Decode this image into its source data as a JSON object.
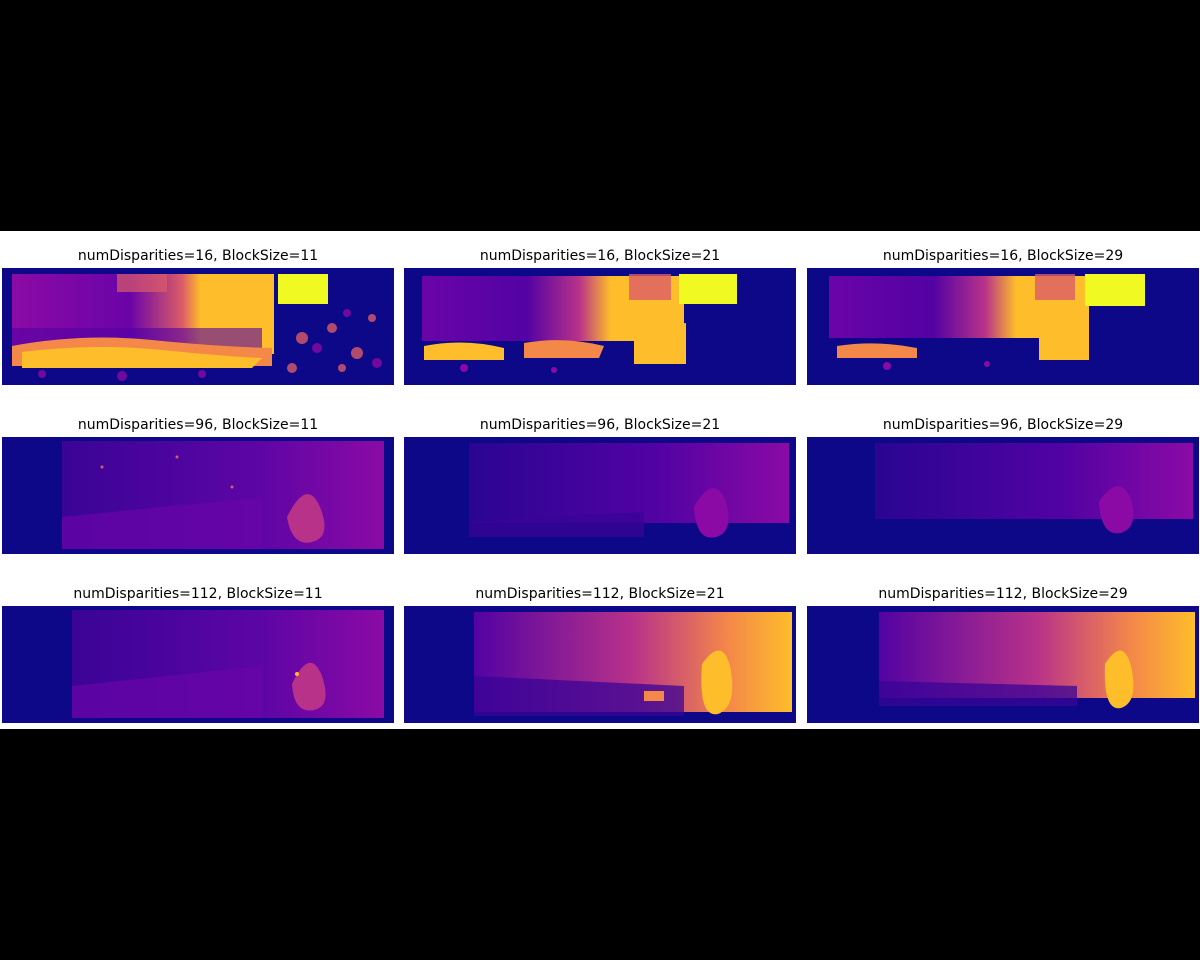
{
  "panels": [
    {
      "title": "numDisparities=16, BlockSize=11",
      "numDisparities": 16,
      "blockSize": 11
    },
    {
      "title": "numDisparities=16, BlockSize=21",
      "numDisparities": 16,
      "blockSize": 21
    },
    {
      "title": "numDisparities=16, BlockSize=29",
      "numDisparities": 16,
      "blockSize": 29
    },
    {
      "title": "numDisparities=96, BlockSize=11",
      "numDisparities": 96,
      "blockSize": 11
    },
    {
      "title": "numDisparities=96, BlockSize=21",
      "numDisparities": 96,
      "blockSize": 21
    },
    {
      "title": "numDisparities=96, BlockSize=29",
      "numDisparities": 96,
      "blockSize": 29
    },
    {
      "title": "numDisparities=112, BlockSize=11",
      "numDisparities": 112,
      "blockSize": 11
    },
    {
      "title": "numDisparities=112, BlockSize=21",
      "numDisparities": 112,
      "blockSize": 21
    },
    {
      "title": "numDisparities=112, BlockSize=29",
      "numDisparities": 112,
      "blockSize": 29
    }
  ],
  "colormap": [
    "#0d0887",
    "#5302a3",
    "#8b0aa5",
    "#b83289",
    "#db5c68",
    "#f48849",
    "#febd2a",
    "#f0f921"
  ]
}
